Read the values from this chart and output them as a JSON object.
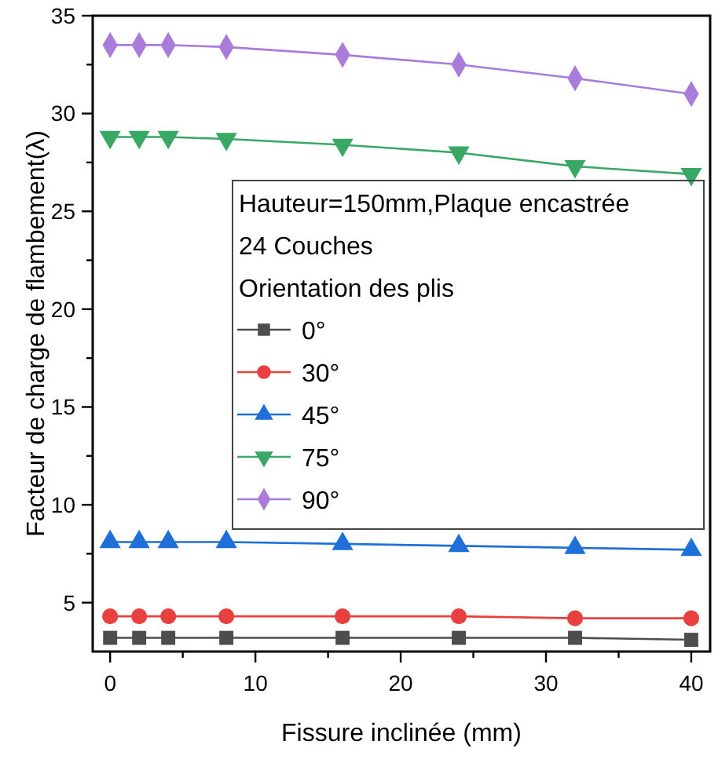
{
  "chart_data": {
    "type": "line",
    "xlabel": "Fissure inclinée (mm)",
    "ylabel": "Facteur de charge de flambement(λ)",
    "legend_title": "Hauteur=150mm,Plaque encastrée\n24 Couches\nOrientation des plis",
    "legend": "center",
    "grid": false,
    "x": [
      0,
      2,
      4,
      8,
      16,
      24,
      32,
      40
    ],
    "xlim": [
      -1.2,
      41.3
    ],
    "xticks": [
      0,
      {
        "value": 5,
        "label": null
      },
      10,
      {
        "value": 15,
        "label": null
      },
      20,
      {
        "value": 25,
        "label": null
      },
      30,
      {
        "value": 35,
        "label": null
      },
      40
    ],
    "ylim": [
      2.5,
      35
    ],
    "yticks": [
      5,
      {
        "value": 7.5,
        "label": null
      },
      10,
      {
        "value": 12.5,
        "label": null
      },
      15,
      {
        "value": 17.5,
        "label": null
      },
      20,
      {
        "value": 22.5,
        "label": null
      },
      25,
      {
        "value": 27.5,
        "label": null
      },
      30,
      {
        "value": 32.5,
        "label": null
      },
      35
    ],
    "series": [
      {
        "name": "0°",
        "color": "#4d4d4d",
        "marker": "square",
        "values": [
          3.2,
          3.2,
          3.2,
          3.2,
          3.2,
          3.2,
          3.2,
          3.1
        ]
      },
      {
        "name": "30°",
        "color": "#e8403f",
        "marker": "circle",
        "values": [
          4.3,
          4.3,
          4.3,
          4.3,
          4.3,
          4.3,
          4.2,
          4.2
        ]
      },
      {
        "name": "45°",
        "color": "#1f6fd8",
        "marker": "triangle",
        "values": [
          8.1,
          8.1,
          8.1,
          8.1,
          8.0,
          7.9,
          7.8,
          7.7
        ]
      },
      {
        "name": "75°",
        "color": "#3aa865",
        "marker": "triangle-down",
        "values": [
          28.8,
          28.8,
          28.8,
          28.7,
          28.4,
          28.0,
          27.3,
          26.9
        ]
      },
      {
        "name": "90°",
        "color": "#a97bdb",
        "marker": "diamond",
        "values": [
          33.5,
          33.5,
          33.5,
          33.4,
          33.0,
          32.5,
          31.8,
          31.0
        ]
      }
    ]
  }
}
